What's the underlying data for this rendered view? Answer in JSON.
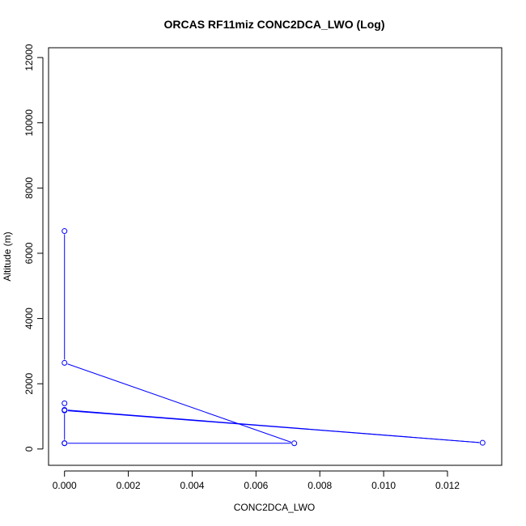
{
  "chart_data": {
    "type": "line",
    "title": "ORCAS RF11miz CONC2DCA_LWO (Log)",
    "xlabel": "CONC2DCA_LWO",
    "ylabel": "Altitude (m)",
    "xlim": [
      -0.0005,
      0.0137
    ],
    "ylim": [
      -500,
      12300
    ],
    "x_ticks": [
      0.0,
      0.002,
      0.004,
      0.006,
      0.008,
      0.01,
      0.012
    ],
    "x_tick_labels": [
      "0.000",
      "0.002",
      "0.004",
      "0.006",
      "0.008",
      "0.010",
      "0.012"
    ],
    "y_ticks": [
      0,
      2000,
      4000,
      6000,
      8000,
      10000,
      12000
    ],
    "y_tick_labels": [
      "0",
      "2000",
      "4000",
      "6000",
      "8000",
      "10000",
      "12000"
    ],
    "grid": false,
    "series": [
      {
        "color": "#0000ff",
        "marker": "open-circle",
        "points": [
          {
            "x": 0.0,
            "y": 6680
          },
          {
            "x": 0.0,
            "y": 2640
          },
          {
            "x": 0.0072,
            "y": 175
          },
          {
            "x": 0.0,
            "y": 175
          },
          {
            "x": 0.0,
            "y": 180
          },
          {
            "x": 0.0,
            "y": 1180
          },
          {
            "x": 0.0131,
            "y": 190
          },
          {
            "x": 0.0,
            "y": 1200
          },
          {
            "x": 0.0,
            "y": 1400
          }
        ]
      }
    ]
  }
}
